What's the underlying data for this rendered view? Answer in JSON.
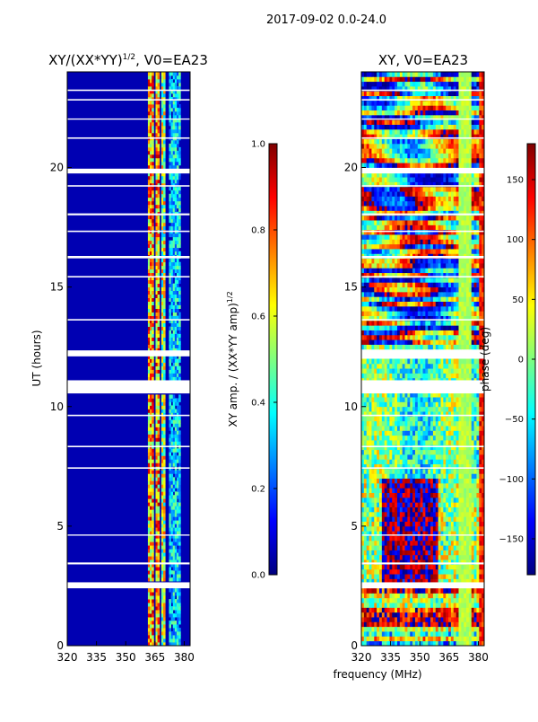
{
  "figure_title": "2017-09-02 0.0-24.0",
  "x_label_shared": "frequency (MHz)",
  "colormap": [
    "#00007f",
    "#0000ff",
    "#007fff",
    "#00ffff",
    "#7fff7f",
    "#ffff00",
    "#ff7f00",
    "#ff0000",
    "#7f0000"
  ],
  "chart_data": [
    {
      "type": "heatmap",
      "id": "amplitude",
      "title_main": "XY/(XX*YY)",
      "title_sup": "1/2",
      "title_tail": ", V0=EA23",
      "xlabel": "",
      "ylabel": "UT (hours)",
      "xlim": [
        320,
        383
      ],
      "ylim": [
        0,
        24
      ],
      "xticks": [
        320,
        335,
        350,
        365,
        380
      ],
      "yticks": [
        0,
        5,
        10,
        15,
        20
      ],
      "colorbar": {
        "label_main": "XY amp. / (XX*YY amp)",
        "label_sup": "1/2",
        "range": [
          0.0,
          1.0
        ],
        "ticks": [
          "0.0",
          "0.2",
          "0.4",
          "0.6",
          "0.8",
          "1.0"
        ],
        "tick_values": [
          0.0,
          0.2,
          0.4,
          0.6,
          0.8,
          1.0
        ]
      },
      "gaps_hours": [
        [
          2.4,
          2.65
        ],
        [
          10.55,
          11.1
        ],
        [
          12.1,
          12.35
        ],
        [
          19.75,
          19.95
        ]
      ],
      "bright_bands_mhz": [
        [
          361,
          364
        ],
        [
          365,
          367
        ],
        [
          368,
          370
        ],
        [
          372,
          378
        ]
      ],
      "background_value": 0.05
    },
    {
      "type": "heatmap",
      "id": "phase",
      "title_main": "XY, V0=EA23",
      "xlabel": "frequency (MHz)",
      "ylabel": "",
      "xlim": [
        320,
        383
      ],
      "ylim": [
        0,
        24
      ],
      "xticks": [
        320,
        335,
        350,
        365,
        380
      ],
      "yticks": [
        0,
        5,
        10,
        15,
        20
      ],
      "colorbar": {
        "label_main": "phase (deg)",
        "range": [
          -180,
          180
        ],
        "ticks": [
          "150",
          "100",
          "50",
          "0",
          "−50",
          "−100",
          "−150"
        ],
        "tick_values": [
          150,
          100,
          50,
          0,
          -50,
          -100,
          -150
        ]
      },
      "gaps_hours": [
        [
          2.4,
          2.65
        ],
        [
          10.55,
          11.1
        ],
        [
          12.1,
          12.35
        ],
        [
          19.75,
          19.95
        ]
      ]
    }
  ]
}
